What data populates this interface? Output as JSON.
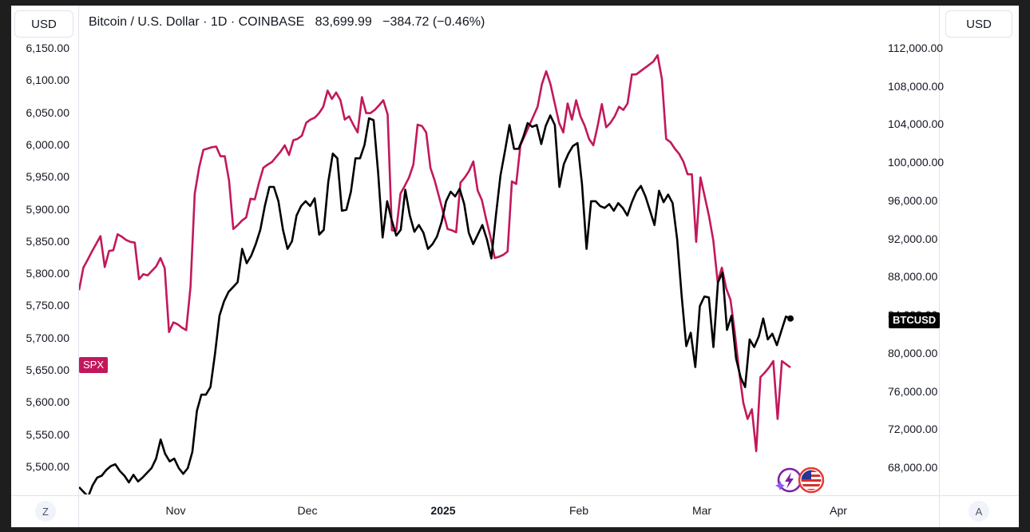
{
  "header": {
    "left_currency": "USD",
    "right_currency": "USD",
    "title": "Bitcoin / U.S. Dollar · 1D · COINBASE",
    "last_price": "83,699.99",
    "change": "−384.72 (−0.46%)"
  },
  "left_axis": {
    "ticks": [
      "6,150.00",
      "6,100.00",
      "6,050.00",
      "6,000.00",
      "5,950.00",
      "5,900.00",
      "5,850.00",
      "5,800.00",
      "5,750.00",
      "5,700.00",
      "5,650.00",
      "5,600.00",
      "5,550.00",
      "5,500.00"
    ]
  },
  "right_axis": {
    "ticks": [
      "112,000.00",
      "108,000.00",
      "104,000.00",
      "100,000.00",
      "96,000.00",
      "92,000.00",
      "88,000.00",
      "84,000.00",
      "80,000.00",
      "76,000.00",
      "72,000.00",
      "68,000.00"
    ]
  },
  "x_axis": {
    "ticks": [
      "Nov",
      "Dec",
      "2025",
      "Feb",
      "Mar",
      "Apr"
    ]
  },
  "corner_buttons": {
    "left": "Z",
    "right": "A"
  },
  "labels": {
    "spx": "SPX",
    "btc": "BTCUSD"
  },
  "colors": {
    "spx": "#c2185b",
    "btc": "#000000"
  },
  "icons": [
    "sparkle-lightning-icon",
    "us-flag-icon"
  ],
  "chart_data": {
    "type": "line",
    "series": [
      {
        "name": "SPX",
        "axis": "left",
        "color": "#c2185b",
        "values": [
          5775,
          5810,
          5822,
          5835,
          5847,
          5859,
          5811,
          5836,
          5837,
          5862,
          5858,
          5853,
          5850,
          5849,
          5792,
          5800,
          5798,
          5805,
          5812,
          5825,
          5809,
          5710,
          5725,
          5722,
          5717,
          5713,
          5780,
          5925,
          5965,
          5993,
          5995,
          5997,
          5998,
          5983,
          5983,
          5945,
          5870,
          5876,
          5883,
          5888,
          5917,
          5916,
          5942,
          5965,
          5970,
          5974,
          5982,
          5990,
          6000,
          5985,
          6008,
          6010,
          6015,
          6035,
          6040,
          6043,
          6050,
          6060,
          6085,
          6072,
          6082,
          6070,
          6040,
          6045,
          6032,
          6020,
          6075,
          6050,
          6050,
          6055,
          6062,
          6070,
          6048,
          5868,
          5867,
          5925,
          5937,
          5950,
          5970,
          6032,
          6030,
          6020,
          5965,
          5945,
          5920,
          5895,
          5870,
          5868,
          5865,
          5942,
          5950,
          5960,
          5975,
          5930,
          5915,
          5885,
          5858,
          5825,
          5827,
          5830,
          5835,
          5944,
          5940,
          6000,
          6015,
          6030,
          6045,
          6060,
          6095,
          6115,
          6095,
          6065,
          6035,
          6020,
          6065,
          6040,
          6070,
          6045,
          6030,
          6010,
          6000,
          6030,
          6064,
          6028,
          6035,
          6045,
          6060,
          6055,
          6065,
          6110,
          6110,
          6115,
          6120,
          6125,
          6130,
          6140,
          6103,
          6010,
          6005,
          5995,
          5987,
          5975,
          5955,
          5955,
          5850,
          5950,
          5920,
          5890,
          5852,
          5788,
          5810,
          5778,
          5760,
          5710,
          5650,
          5600,
          5575,
          5590,
          5525,
          5640,
          5647,
          5655,
          5665,
          5575,
          5665,
          5660,
          5655
        ]
      },
      {
        "name": "BTCUSD",
        "axis": "right",
        "color": "#000000",
        "values": [
          66000,
          65500,
          65000,
          66200,
          67000,
          67200,
          67800,
          68200,
          68400,
          67700,
          67200,
          66500,
          67300,
          66600,
          67000,
          67500,
          68000,
          69000,
          71000,
          69500,
          68700,
          69000,
          68000,
          67400,
          68000,
          69700,
          74000,
          75700,
          75700,
          76500,
          80000,
          84000,
          85500,
          86500,
          87000,
          87500,
          91000,
          89500,
          90300,
          91500,
          93000,
          95500,
          97500,
          97500,
          96000,
          93000,
          91000,
          91800,
          94500,
          95500,
          96000,
          95500,
          96300,
          92500,
          93000,
          98000,
          101000,
          100500,
          95000,
          95100,
          97000,
          100500,
          100500,
          101900,
          104700,
          104500,
          99000,
          92200,
          96000,
          94000,
          92400,
          93000,
          97200,
          94500,
          92800,
          93500,
          92700,
          91000,
          91500,
          92300,
          93800,
          96000,
          97000,
          96500,
          97300,
          95700,
          92700,
          91500,
          92500,
          93500,
          92000,
          90000,
          94500,
          98700,
          101300,
          104000,
          101500,
          101500,
          102700,
          104200,
          103800,
          104000,
          102000,
          103900,
          105000,
          104000,
          97500,
          99900,
          101000,
          101800,
          102100,
          97800,
          91000,
          96000,
          96000,
          95500,
          95300,
          95700,
          95000,
          95800,
          95300,
          94500,
          95900,
          97000,
          97600,
          96500,
          95000,
          93500,
          97100,
          95900,
          96700,
          95800,
          92000,
          86000,
          80800,
          82200,
          78600,
          85000,
          86000,
          85900,
          80700,
          87500,
          88500,
          82500,
          84000,
          79500,
          77500,
          76500,
          81500,
          80700,
          81800,
          83700,
          81500,
          82100,
          80900,
          82400,
          83900,
          83700
        ]
      }
    ],
    "left_ylim": [
      5475,
      6175
    ],
    "right_ylim": [
      65000,
      113000
    ],
    "x_range": [
      "Oct",
      "Apr"
    ],
    "grid": true,
    "legend": "none"
  }
}
